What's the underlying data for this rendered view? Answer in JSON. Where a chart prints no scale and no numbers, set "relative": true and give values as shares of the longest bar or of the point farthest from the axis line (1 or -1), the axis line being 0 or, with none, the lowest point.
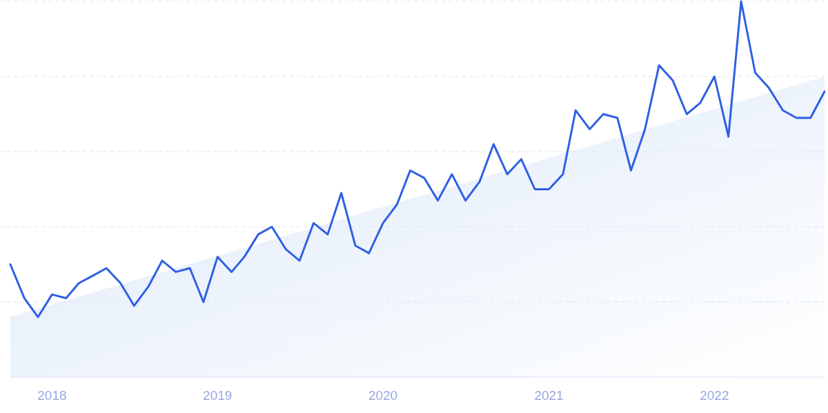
{
  "chart_data": {
    "type": "line",
    "relative": true,
    "grid": "y",
    "xlim": [
      "2017-10",
      "2022-09"
    ],
    "xticks": [
      "2018",
      "2019",
      "2020",
      "2021",
      "2022"
    ],
    "series": [
      {
        "type": "area",
        "color": "#dce8f8",
        "x": [
          "2017-10",
          "2022-09"
        ],
        "values": [
          0.16,
          0.8
        ]
      },
      {
        "color": "#2f5fe3",
        "x": [
          "2017-10",
          "2017-11",
          "2017-12",
          "2018-01",
          "2018-02",
          "2018-03",
          "2018-04",
          "2018-05",
          "2018-06",
          "2018-07",
          "2018-08",
          "2018-09",
          "2018-10",
          "2018-11",
          "2018-12",
          "2019-01",
          "2019-02",
          "2019-03",
          "2019-04",
          "2019-05",
          "2019-06",
          "2019-07",
          "2019-08",
          "2019-09",
          "2019-10",
          "2019-11",
          "2019-12",
          "2020-01",
          "2020-02",
          "2020-03",
          "2020-04",
          "2020-05",
          "2020-06",
          "2020-07",
          "2020-08",
          "2020-09",
          "2020-10",
          "2020-11",
          "2020-12",
          "2021-01",
          "2021-02",
          "2021-03",
          "2021-04",
          "2021-05",
          "2021-06",
          "2021-07",
          "2021-08",
          "2021-09",
          "2021-10",
          "2021-11",
          "2021-12",
          "2022-01",
          "2022-02",
          "2022-03",
          "2022-04",
          "2022-05",
          "2022-06",
          "2022-07",
          "2022-08",
          "2022-09"
        ],
        "values": [
          0.3,
          0.21,
          0.16,
          0.22,
          0.21,
          0.25,
          0.27,
          0.29,
          0.25,
          0.19,
          0.24,
          0.31,
          0.28,
          0.29,
          0.2,
          0.32,
          0.28,
          0.32,
          0.38,
          0.4,
          0.34,
          0.31,
          0.41,
          0.38,
          0.49,
          0.35,
          0.33,
          0.41,
          0.46,
          0.55,
          0.53,
          0.47,
          0.54,
          0.47,
          0.52,
          0.62,
          0.54,
          0.58,
          0.5,
          0.5,
          0.54,
          0.71,
          0.66,
          0.7,
          0.69,
          0.55,
          0.66,
          0.83,
          0.79,
          0.7,
          0.73,
          0.8,
          0.64,
          1,
          0.81,
          0.77,
          0.71,
          0.69,
          0.69,
          0.76
        ]
      }
    ]
  }
}
